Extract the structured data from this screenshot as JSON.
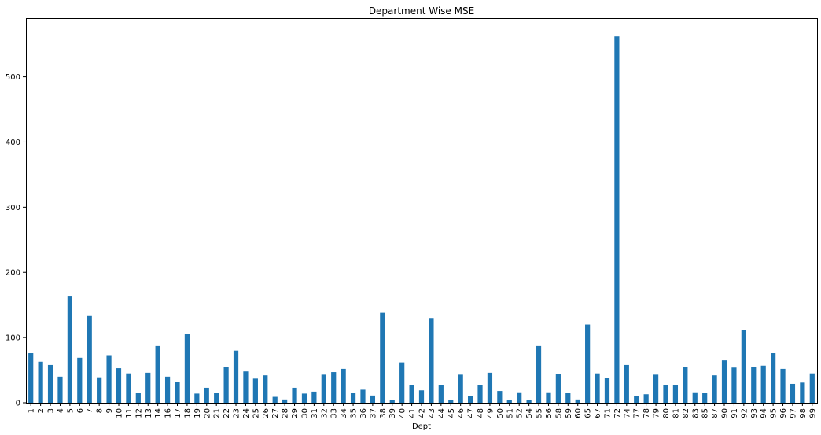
{
  "chart_data": {
    "type": "bar",
    "title": "Department Wise MSE",
    "xlabel": "Dept",
    "ylabel": "",
    "ylim": [
      0,
      590
    ],
    "yticks": [
      0,
      100,
      200,
      300,
      400,
      500
    ],
    "bar_color": "#1f77b4",
    "legend": "none",
    "grid": false,
    "categories": [
      "1",
      "2",
      "3",
      "4",
      "5",
      "6",
      "7",
      "8",
      "9",
      "10",
      "11",
      "12",
      "13",
      "14",
      "16",
      "17",
      "18",
      "19",
      "20",
      "21",
      "22",
      "23",
      "24",
      "25",
      "26",
      "27",
      "28",
      "29",
      "30",
      "31",
      "32",
      "33",
      "34",
      "35",
      "36",
      "37",
      "38",
      "39",
      "40",
      "41",
      "42",
      "43",
      "44",
      "45",
      "46",
      "47",
      "48",
      "49",
      "50",
      "51",
      "52",
      "54",
      "55",
      "56",
      "58",
      "59",
      "60",
      "65",
      "67",
      "71",
      "72",
      "74",
      "77",
      "78",
      "79",
      "80",
      "81",
      "82",
      "83",
      "85",
      "87",
      "90",
      "91",
      "92",
      "93",
      "94",
      "95",
      "96",
      "97",
      "98",
      "99"
    ],
    "values": [
      76,
      63,
      58,
      40,
      164,
      69,
      133,
      39,
      73,
      53,
      45,
      15,
      46,
      87,
      40,
      32,
      106,
      14,
      23,
      15,
      55,
      80,
      48,
      37,
      42,
      9,
      5,
      23,
      14,
      17,
      43,
      47,
      52,
      15,
      20,
      11,
      138,
      4,
      62,
      27,
      19,
      130,
      27,
      4,
      43,
      10,
      27,
      46,
      18,
      4,
      16,
      4,
      87,
      16,
      44,
      15,
      5,
      120,
      45,
      38,
      562,
      58,
      10,
      13,
      43,
      27,
      27,
      55,
      16,
      15,
      42,
      65,
      54,
      111,
      55,
      57,
      76,
      52,
      29,
      31,
      45
    ]
  }
}
